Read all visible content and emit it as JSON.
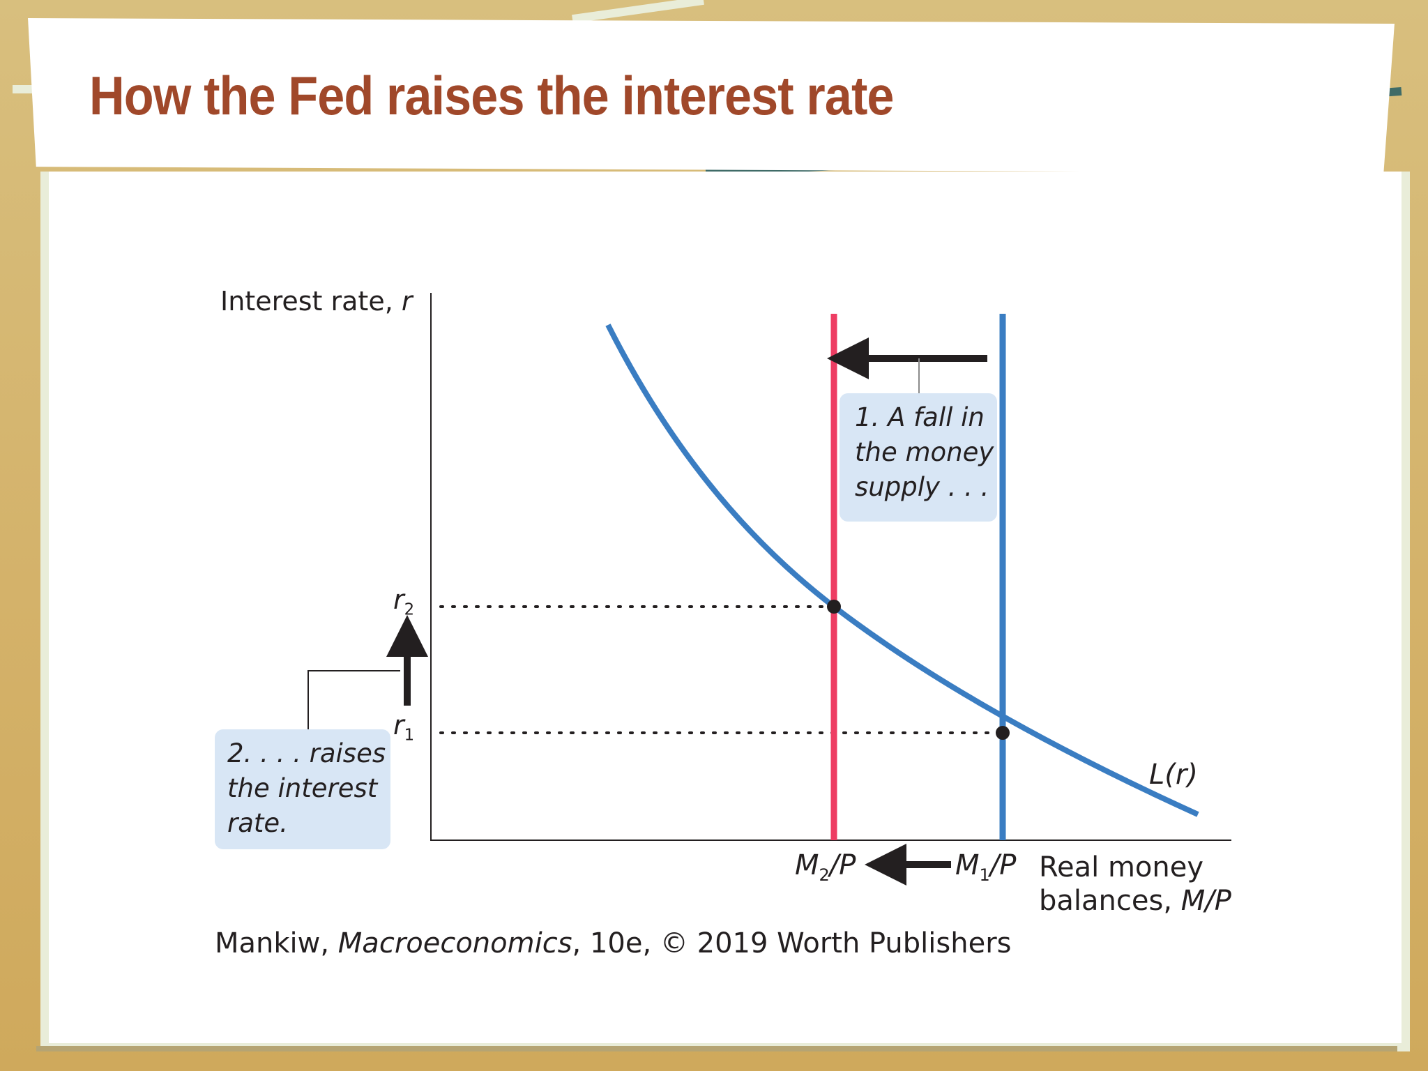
{
  "slide": {
    "title": "How the Fed raises the interest rate",
    "credit": {
      "author": "Mankiw, ",
      "book": "Macroeconomics",
      "rest": ", 10e, © 2019 Worth Publishers"
    }
  },
  "diagram": {
    "y_axis_label": {
      "text": "Interest rate, ",
      "var": "r"
    },
    "x_axis_label": {
      "line1": "Real money",
      "line2_text": "balances, ",
      "line2_var": "M/P"
    },
    "curve_label": "L(r)",
    "r2": {
      "base": "r",
      "sub": "2"
    },
    "r1": {
      "base": "r",
      "sub": "1"
    },
    "m2": {
      "pre": "M",
      "sub": "2",
      "post": "/P"
    },
    "m1": {
      "pre": "M",
      "sub": "1",
      "post": "/P"
    },
    "caption1": [
      "1. A fall in",
      "the money",
      "supply . . ."
    ],
    "caption2": [
      "2. . . . raises",
      "the interest",
      "rate."
    ],
    "colors": {
      "demand_curve": "#3a7dc2",
      "old_supply": "#3a7dc2",
      "new_supply": "#ee3d63",
      "caption_bg": "#d8e6f5",
      "title": "#a0482a"
    }
  }
}
